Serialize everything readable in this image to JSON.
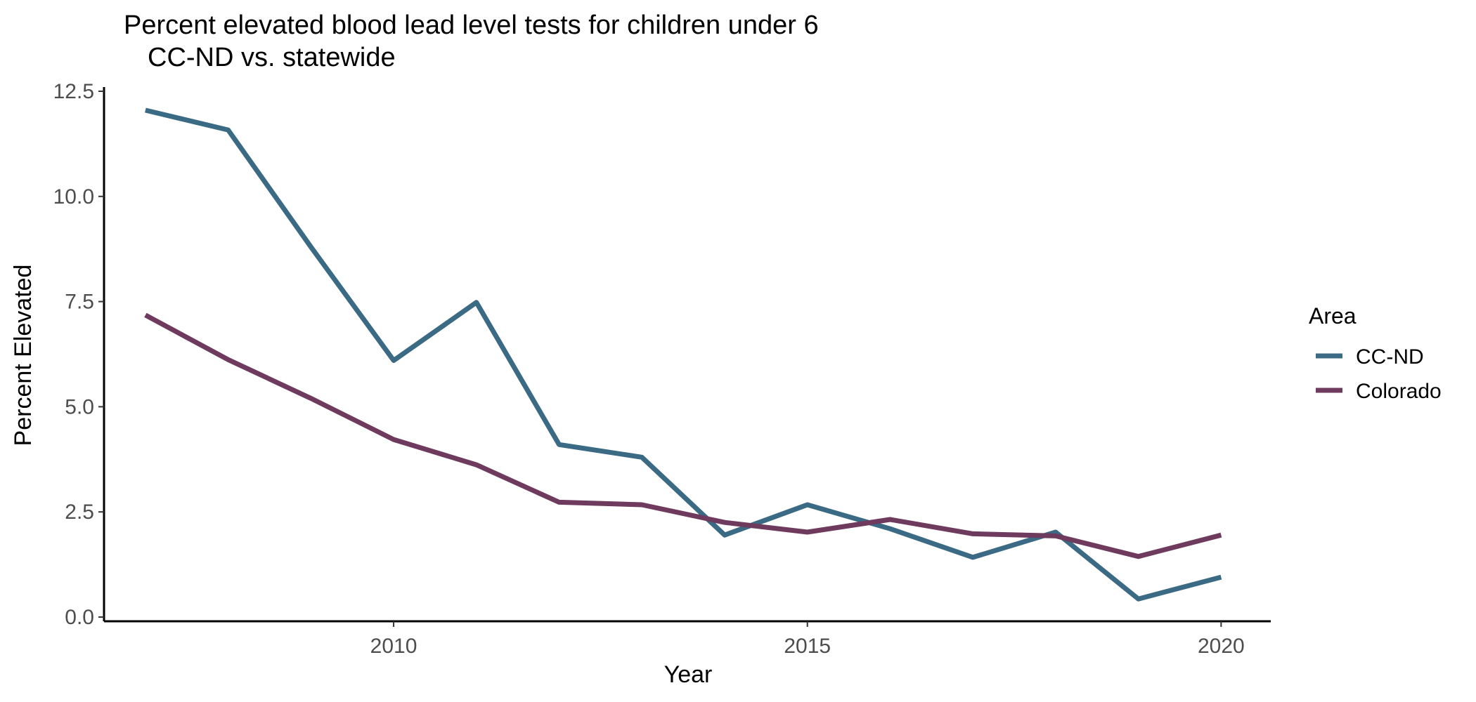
{
  "chart_data": {
    "type": "line",
    "title": "Percent elevated blood lead level tests for children under 6",
    "subtitle": "CC-ND vs. statewide",
    "xlabel": "Year",
    "ylabel": "Percent Elevated",
    "x": [
      2007,
      2008,
      2009,
      2010,
      2011,
      2012,
      2013,
      2014,
      2015,
      2016,
      2017,
      2018,
      2019,
      2020
    ],
    "xlim": [
      2006.5,
      2020.6
    ],
    "ylim": [
      -0.1,
      12.6
    ],
    "x_ticks": [
      2010,
      2015,
      2020
    ],
    "x_tick_labels": [
      "2010",
      "2015",
      "2020"
    ],
    "y_ticks": [
      0,
      2.5,
      5,
      7.5,
      10,
      12.5
    ],
    "y_tick_labels": [
      "0.0",
      "2.5",
      "5.0",
      "7.5",
      "10.0",
      "12.5"
    ],
    "grid": false,
    "legend": {
      "title": "Area",
      "position": "right"
    },
    "series": [
      {
        "name": "CC-ND",
        "color": "#3b6a84",
        "values": [
          12.05,
          11.58,
          8.8,
          6.1,
          7.48,
          4.1,
          3.8,
          1.95,
          2.67,
          2.1,
          1.42,
          2.02,
          0.43,
          0.95
        ]
      },
      {
        "name": "Colorado",
        "color": "#6e3a5e",
        "values": [
          7.18,
          6.12,
          5.2,
          4.22,
          3.62,
          2.73,
          2.67,
          2.25,
          2.02,
          2.32,
          1.98,
          1.93,
          1.44,
          1.95
        ]
      }
    ]
  }
}
